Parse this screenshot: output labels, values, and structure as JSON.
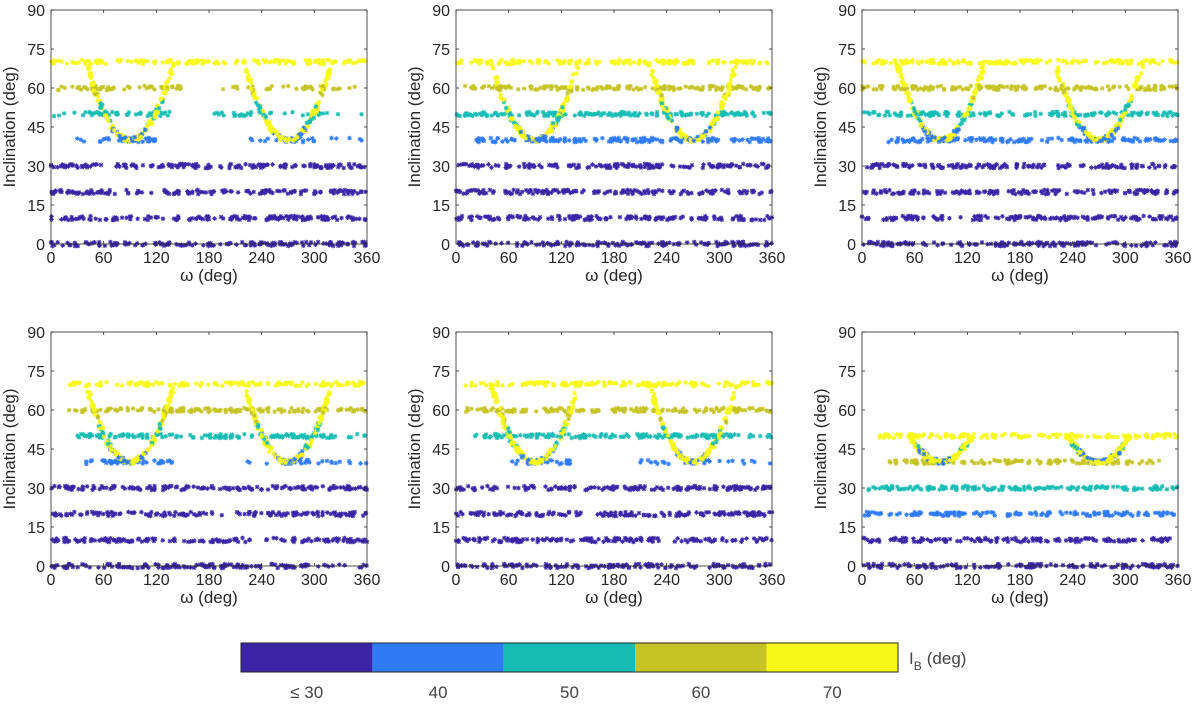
{
  "colorbar": {
    "title_main": "I",
    "title_sub": "B",
    "title_unit": "(deg)",
    "levels": [
      {
        "value": 30,
        "label": "≤ 30",
        "color": "#3b24a6"
      },
      {
        "value": 40,
        "label": "40",
        "color": "#2f7bf5"
      },
      {
        "value": 50,
        "label": "50",
        "color": "#17bdb4"
      },
      {
        "value": 60,
        "label": "60",
        "color": "#c6c425"
      },
      {
        "value": 70,
        "label": "70",
        "color": "#f8f81a"
      }
    ]
  },
  "chart_data": [
    {
      "type": "scatter",
      "panel": 1,
      "xlabel": "ω (deg)",
      "ylabel": "Inclination (deg)",
      "xlim": [
        0,
        360
      ],
      "ylim": [
        0,
        90
      ],
      "xticks": [
        0,
        60,
        120,
        180,
        240,
        300,
        360
      ],
      "yticks": [
        0,
        15,
        30,
        45,
        60,
        75,
        90
      ],
      "bands": [
        {
          "inclination": 0,
          "I_B": 30,
          "range": [
            0,
            360
          ]
        },
        {
          "inclination": 10,
          "I_B": 30,
          "range": [
            0,
            360
          ]
        },
        {
          "inclination": 20,
          "I_B": 30,
          "range": [
            0,
            360
          ]
        },
        {
          "inclination": 30,
          "I_B": 30,
          "range": [
            0,
            360
          ]
        },
        {
          "inclination": 40,
          "I_B": 40,
          "range": [
            55,
            125
          ],
          "sparse": [
            [
              20,
              40
            ],
            [
              225,
              330
            ],
            [
              340,
              355
            ]
          ]
        },
        {
          "inclination": 50,
          "I_B": 50,
          "range": [
            45,
            135
          ],
          "sparse": [
            [
              0,
              45
            ],
            [
              180,
              360
            ]
          ]
        },
        {
          "inclination": 60,
          "I_B": 60,
          "range": [
            30,
            150
          ],
          "sparse": [
            [
              0,
              30
            ],
            [
              180,
              360
            ]
          ]
        },
        {
          "inclination": 70,
          "I_B": 70,
          "range": [
            0,
            360
          ]
        }
      ],
      "arcs": [
        {
          "center": 90,
          "I_B": 70,
          "from_inclination": 70,
          "to_inclination": 40
        },
        {
          "center": 270,
          "I_B": 70,
          "from_inclination": 70,
          "to_inclination": 40
        }
      ]
    },
    {
      "type": "scatter",
      "panel": 2,
      "xlabel": "ω (deg)",
      "ylabel": "Inclination (deg)",
      "xlim": [
        0,
        360
      ],
      "ylim": [
        0,
        90
      ],
      "xticks": [
        0,
        60,
        120,
        180,
        240,
        300,
        360
      ],
      "yticks": [
        0,
        15,
        30,
        45,
        60,
        75,
        90
      ],
      "bands": [
        {
          "inclination": 0,
          "I_B": 30,
          "range": [
            0,
            360
          ]
        },
        {
          "inclination": 10,
          "I_B": 30,
          "range": [
            0,
            360
          ]
        },
        {
          "inclination": 20,
          "I_B": 30,
          "range": [
            0,
            360
          ]
        },
        {
          "inclination": 30,
          "I_B": 30,
          "range": [
            0,
            360
          ]
        },
        {
          "inclination": 40,
          "I_B": 40,
          "range": [
            20,
            360
          ]
        },
        {
          "inclination": 50,
          "I_B": 50,
          "range": [
            0,
            360
          ]
        },
        {
          "inclination": 60,
          "I_B": 60,
          "range": [
            0,
            360
          ]
        },
        {
          "inclination": 70,
          "I_B": 70,
          "range": [
            0,
            360
          ]
        }
      ],
      "arcs": [
        {
          "center": 90,
          "I_B": 70,
          "from_inclination": 70,
          "to_inclination": 40
        },
        {
          "center": 270,
          "I_B": 70,
          "from_inclination": 70,
          "to_inclination": 40
        }
      ]
    },
    {
      "type": "scatter",
      "panel": 3,
      "xlabel": "ω (deg)",
      "ylabel": "Inclination (deg)",
      "xlim": [
        0,
        360
      ],
      "ylim": [
        0,
        90
      ],
      "xticks": [
        0,
        60,
        120,
        180,
        240,
        300,
        360
      ],
      "yticks": [
        0,
        15,
        30,
        45,
        60,
        75,
        90
      ],
      "bands": [
        {
          "inclination": 0,
          "I_B": 30,
          "range": [
            0,
            360
          ]
        },
        {
          "inclination": 10,
          "I_B": 30,
          "range": [
            0,
            360
          ]
        },
        {
          "inclination": 20,
          "I_B": 30,
          "range": [
            0,
            360
          ]
        },
        {
          "inclination": 30,
          "I_B": 30,
          "range": [
            0,
            360
          ]
        },
        {
          "inclination": 40,
          "I_B": 40,
          "range": [
            25,
            360
          ]
        },
        {
          "inclination": 50,
          "I_B": 50,
          "range": [
            0,
            360
          ]
        },
        {
          "inclination": 60,
          "I_B": 60,
          "range": [
            0,
            360
          ]
        },
        {
          "inclination": 70,
          "I_B": 70,
          "range": [
            0,
            360
          ]
        }
      ],
      "arcs": [
        {
          "center": 90,
          "I_B": 70,
          "from_inclination": 70,
          "to_inclination": 40
        },
        {
          "center": 270,
          "I_B": 70,
          "from_inclination": 70,
          "to_inclination": 40
        }
      ]
    },
    {
      "type": "scatter",
      "panel": 4,
      "xlabel": "ω (deg)",
      "ylabel": "Inclination (deg)",
      "xlim": [
        0,
        360
      ],
      "ylim": [
        0,
        90
      ],
      "xticks": [
        0,
        60,
        120,
        180,
        240,
        300,
        360
      ],
      "yticks": [
        0,
        15,
        30,
        45,
        60,
        75,
        90
      ],
      "bands": [
        {
          "inclination": 0,
          "I_B": 30,
          "range": [
            0,
            360
          ]
        },
        {
          "inclination": 10,
          "I_B": 30,
          "range": [
            0,
            360
          ]
        },
        {
          "inclination": 20,
          "I_B": 30,
          "range": [
            0,
            360
          ]
        },
        {
          "inclination": 30,
          "I_B": 30,
          "range": [
            0,
            360
          ]
        },
        {
          "inclination": 40,
          "I_B": 40,
          "range": [
            40,
            140
          ],
          "sparse": [
            [
              220,
              360
            ]
          ]
        },
        {
          "inclination": 50,
          "I_B": 50,
          "range": [
            30,
            360
          ]
        },
        {
          "inclination": 60,
          "I_B": 60,
          "range": [
            20,
            360
          ]
        },
        {
          "inclination": 70,
          "I_B": 70,
          "range": [
            20,
            360
          ]
        }
      ],
      "arcs": [
        {
          "center": 90,
          "I_B": 70,
          "from_inclination": 70,
          "to_inclination": 40
        },
        {
          "center": 270,
          "I_B": 70,
          "from_inclination": 70,
          "to_inclination": 40
        }
      ]
    },
    {
      "type": "scatter",
      "panel": 5,
      "xlabel": "ω (deg)",
      "ylabel": "Inclination (deg)",
      "xlim": [
        0,
        360
      ],
      "ylim": [
        0,
        90
      ],
      "xticks": [
        0,
        60,
        120,
        180,
        240,
        300,
        360
      ],
      "yticks": [
        0,
        15,
        30,
        45,
        60,
        75,
        90
      ],
      "bands": [
        {
          "inclination": 0,
          "I_B": 30,
          "range": [
            0,
            360
          ]
        },
        {
          "inclination": 10,
          "I_B": 30,
          "range": [
            0,
            360
          ]
        },
        {
          "inclination": 20,
          "I_B": 30,
          "range": [
            0,
            360
          ]
        },
        {
          "inclination": 30,
          "I_B": 30,
          "range": [
            0,
            360
          ]
        },
        {
          "inclination": 40,
          "I_B": 40,
          "range": [
            60,
            130
          ],
          "sparse": [
            [
              210,
              360
            ]
          ]
        },
        {
          "inclination": 50,
          "I_B": 50,
          "range": [
            20,
            360
          ]
        },
        {
          "inclination": 60,
          "I_B": 60,
          "range": [
            10,
            360
          ]
        },
        {
          "inclination": 70,
          "I_B": 70,
          "range": [
            10,
            360
          ]
        }
      ],
      "arcs": [
        {
          "center": 90,
          "I_B": 70,
          "from_inclination": 70,
          "to_inclination": 40
        },
        {
          "center": 270,
          "I_B": 70,
          "from_inclination": 70,
          "to_inclination": 40
        }
      ]
    },
    {
      "type": "scatter",
      "panel": 6,
      "xlabel": "ω (deg)",
      "ylabel": "Inclination (deg)",
      "xlim": [
        0,
        360
      ],
      "ylim": [
        0,
        90
      ],
      "xticks": [
        0,
        60,
        120,
        180,
        240,
        300,
        360
      ],
      "yticks": [
        0,
        15,
        30,
        45,
        60,
        75,
        90
      ],
      "bands": [
        {
          "inclination": 0,
          "I_B": 30,
          "range": [
            0,
            360
          ]
        },
        {
          "inclination": 10,
          "I_B": 30,
          "range": [
            0,
            360
          ]
        },
        {
          "inclination": 20,
          "I_B": 40,
          "range": [
            0,
            360
          ]
        },
        {
          "inclination": 30,
          "I_B": 50,
          "range": [
            0,
            360
          ]
        },
        {
          "inclination": 40,
          "I_B": 60,
          "range": [
            30,
            340
          ]
        },
        {
          "inclination": 50,
          "I_B": 70,
          "range": [
            20,
            360
          ]
        }
      ],
      "arcs": [
        {
          "center": 90,
          "I_B": 70,
          "from_inclination": 50,
          "to_inclination": 40
        },
        {
          "center": 270,
          "I_B": 70,
          "from_inclination": 50,
          "to_inclination": 40
        }
      ]
    }
  ]
}
